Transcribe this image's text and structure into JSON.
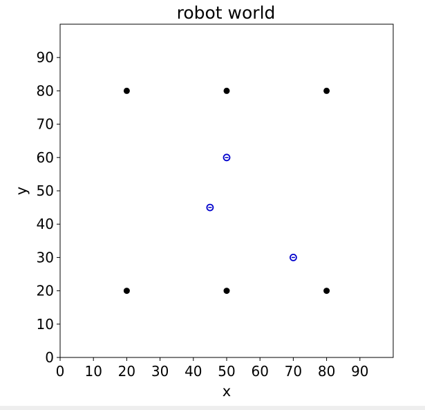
{
  "chart_data": {
    "type": "scatter",
    "title": "robot world",
    "xlabel": "x",
    "ylabel": "y",
    "xlim": [
      0,
      100
    ],
    "ylim": [
      0,
      100
    ],
    "xticks": [
      0,
      10,
      20,
      30,
      40,
      50,
      60,
      70,
      80,
      90
    ],
    "yticks": [
      0,
      10,
      20,
      30,
      40,
      50,
      60,
      70,
      80,
      90
    ],
    "grid": false,
    "series": [
      {
        "marker": "filled-circle",
        "color": "#000000",
        "points": [
          {
            "x": 20,
            "y": 80
          },
          {
            "x": 50,
            "y": 80
          },
          {
            "x": 80,
            "y": 80
          },
          {
            "x": 20,
            "y": 20
          },
          {
            "x": 50,
            "y": 20
          },
          {
            "x": 80,
            "y": 20
          }
        ]
      },
      {
        "marker": "robot-circle",
        "color": "#0000cc",
        "points": [
          {
            "x": 50,
            "y": 60
          },
          {
            "x": 45,
            "y": 45
          },
          {
            "x": 70,
            "y": 30
          }
        ]
      }
    ]
  }
}
